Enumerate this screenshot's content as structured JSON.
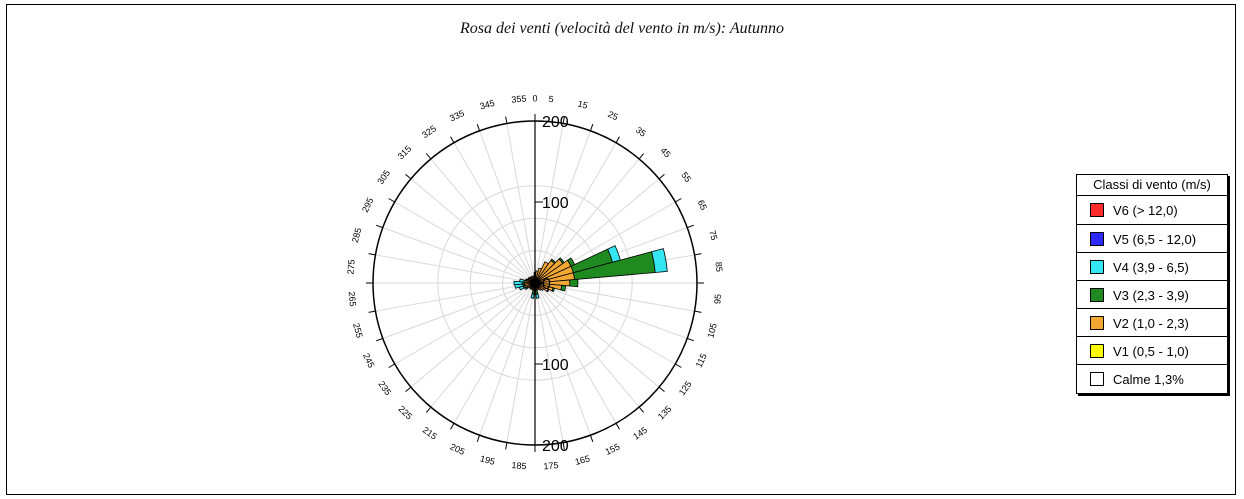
{
  "chart_data": {
    "type": "polar-bar",
    "title": "Rosa dei venti (velocità del vento in m/s): Autunno",
    "direction_labels": [
      "0",
      "5",
      "15",
      "25",
      "35",
      "45",
      "55",
      "65",
      "75",
      "85",
      "95",
      "105",
      "115",
      "125",
      "135",
      "145",
      "155",
      "165",
      "175",
      "185",
      "195",
      "205",
      "215",
      "225",
      "235",
      "245",
      "255",
      "265",
      "275",
      "285",
      "295",
      "305",
      "315",
      "325",
      "335",
      "345",
      "355"
    ],
    "direction_angles": [
      0,
      5,
      15,
      25,
      35,
      45,
      55,
      65,
      75,
      85,
      95,
      105,
      115,
      125,
      135,
      145,
      155,
      165,
      175,
      185,
      195,
      205,
      215,
      225,
      235,
      245,
      255,
      265,
      275,
      285,
      295,
      305,
      315,
      325,
      335,
      345,
      355
    ],
    "radial_axis": {
      "max": 200,
      "tick_labels": [
        "200",
        "100",
        "0",
        "100",
        "200"
      ]
    },
    "sectors": [
      0,
      10,
      20,
      30,
      40,
      50,
      60,
      70,
      80,
      90,
      100,
      110,
      120,
      130,
      140,
      150,
      160,
      170,
      180,
      190,
      200,
      210,
      220,
      230,
      240,
      250,
      260,
      270,
      280,
      290,
      300,
      310,
      320,
      330,
      340,
      350
    ],
    "series": [
      {
        "name": "V1 (0,5 - 1,0)",
        "color": "#ffff00",
        "values": [
          3,
          3,
          4,
          4,
          4,
          4,
          4,
          4,
          4,
          3,
          3,
          3,
          3,
          3,
          3,
          3,
          3,
          3,
          3,
          3,
          3,
          3,
          3,
          3,
          3,
          3,
          3,
          3,
          3,
          3,
          3,
          3,
          3,
          3,
          3,
          3
        ]
      },
      {
        "name": "V2 (1,0 - 2,3)",
        "color": "#f2a733",
        "values": [
          10,
          12,
          15,
          25,
          30,
          38,
          45,
          45,
          45,
          40,
          30,
          20,
          15,
          10,
          8,
          6,
          6,
          6,
          6,
          6,
          6,
          6,
          6,
          6,
          8,
          10,
          10,
          10,
          8,
          6,
          6,
          6,
          6,
          6,
          6,
          6
        ]
      },
      {
        "name": "V3 (2,3 - 3,9)",
        "color": "#1f8a1f",
        "values": [
          0,
          0,
          0,
          0,
          2,
          2,
          5,
          50,
          100,
          10,
          5,
          2,
          1,
          0,
          0,
          0,
          0,
          5,
          0,
          5,
          0,
          0,
          0,
          0,
          1,
          2,
          2,
          3,
          3,
          2,
          1,
          1,
          0,
          0,
          0,
          0
        ]
      },
      {
        "name": "V4 (3,9 - 6,5)",
        "color": "#33e6f2",
        "values": [
          0,
          0,
          0,
          0,
          0,
          0,
          0,
          10,
          15,
          0,
          0,
          0,
          0,
          0,
          0,
          0,
          0,
          5,
          0,
          5,
          0,
          0,
          0,
          0,
          2,
          5,
          10,
          10,
          5,
          1,
          0,
          0,
          0,
          0,
          0,
          0
        ]
      },
      {
        "name": "V5 (6,5 - 12,0)",
        "color": "#2b2bff",
        "values": [
          0,
          0,
          0,
          0,
          0,
          0,
          0,
          0,
          0,
          0,
          0,
          0,
          0,
          0,
          0,
          0,
          0,
          0,
          0,
          0,
          0,
          0,
          0,
          0,
          0,
          0,
          0,
          0,
          0,
          0,
          0,
          0,
          0,
          0,
          0,
          0
        ]
      },
      {
        "name": "V6 (> 12,0)",
        "color": "#ff2a2a",
        "values": [
          0,
          0,
          0,
          0,
          0,
          0,
          0,
          0,
          0,
          0,
          0,
          0,
          0,
          0,
          0,
          0,
          0,
          0,
          0,
          0,
          0,
          0,
          0,
          0,
          0,
          0,
          0,
          0,
          0,
          0,
          0,
          0,
          0,
          0,
          0,
          0
        ]
      }
    ]
  },
  "legend": {
    "title": "Classi di vento (m/s)",
    "items": [
      {
        "label": "V6 (> 12,0)",
        "color": "#ff2a2a"
      },
      {
        "label": "V5 (6,5 - 12,0)",
        "color": "#2b2bff"
      },
      {
        "label": "V4 (3,9 - 6,5)",
        "color": "#33e6f2"
      },
      {
        "label": "V3 (2,3 - 3,9)",
        "color": "#1f8a1f"
      },
      {
        "label": "V2 (1,0 - 2,3)",
        "color": "#f2a733"
      },
      {
        "label": "V1 (0,5 - 1,0)",
        "color": "#ffff00"
      },
      {
        "label": "Calme 1,3%",
        "color": "#ffffff"
      }
    ]
  }
}
